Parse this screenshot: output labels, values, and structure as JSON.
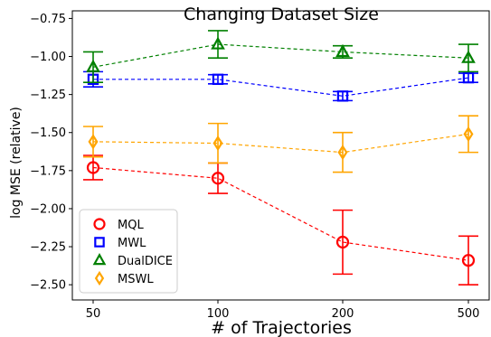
{
  "chart_data": {
    "type": "line",
    "title": "Changing Dataset Size",
    "xlabel": "# of Trajectories",
    "ylabel": "log MSE (relative)",
    "categories": [
      "50",
      "100",
      "200",
      "500"
    ],
    "ylim": [
      -2.6,
      -0.75
    ],
    "yticks": [
      -0.75,
      -1.0,
      -1.25,
      -1.5,
      -1.75,
      -2.0,
      -2.25,
      -2.5
    ],
    "ytick_labels": [
      "−0.75",
      "−1.00",
      "−1.25",
      "−1.50",
      "−1.75",
      "−2.00",
      "−2.25",
      "−2.50"
    ],
    "grid": false,
    "legend_position": "lower-left",
    "series": [
      {
        "name": "MQL",
        "color": "#ff0000",
        "marker": "circle",
        "line_style": "dashed",
        "values": [
          -1.73,
          -1.8,
          -2.22,
          -2.34
        ],
        "errors": [
          0.08,
          0.1,
          0.21,
          0.16
        ]
      },
      {
        "name": "MWL",
        "color": "#0000ff",
        "marker": "square",
        "line_style": "dashed",
        "values": [
          -1.15,
          -1.15,
          -1.26,
          -1.14
        ],
        "errors": [
          0.05,
          0.03,
          0.03,
          0.03
        ]
      },
      {
        "name": "DualDICE",
        "color": "#008000",
        "marker": "triangle",
        "line_style": "dashed",
        "values": [
          -1.07,
          -0.92,
          -0.97,
          -1.01
        ],
        "errors": [
          0.1,
          0.09,
          0.04,
          0.09
        ]
      },
      {
        "name": "MSWL",
        "color": "#ffa500",
        "marker": "diamond",
        "line_style": "dashed",
        "values": [
          -1.56,
          -1.57,
          -1.63,
          -1.51
        ],
        "errors": [
          0.1,
          0.13,
          0.13,
          0.12
        ]
      }
    ]
  }
}
